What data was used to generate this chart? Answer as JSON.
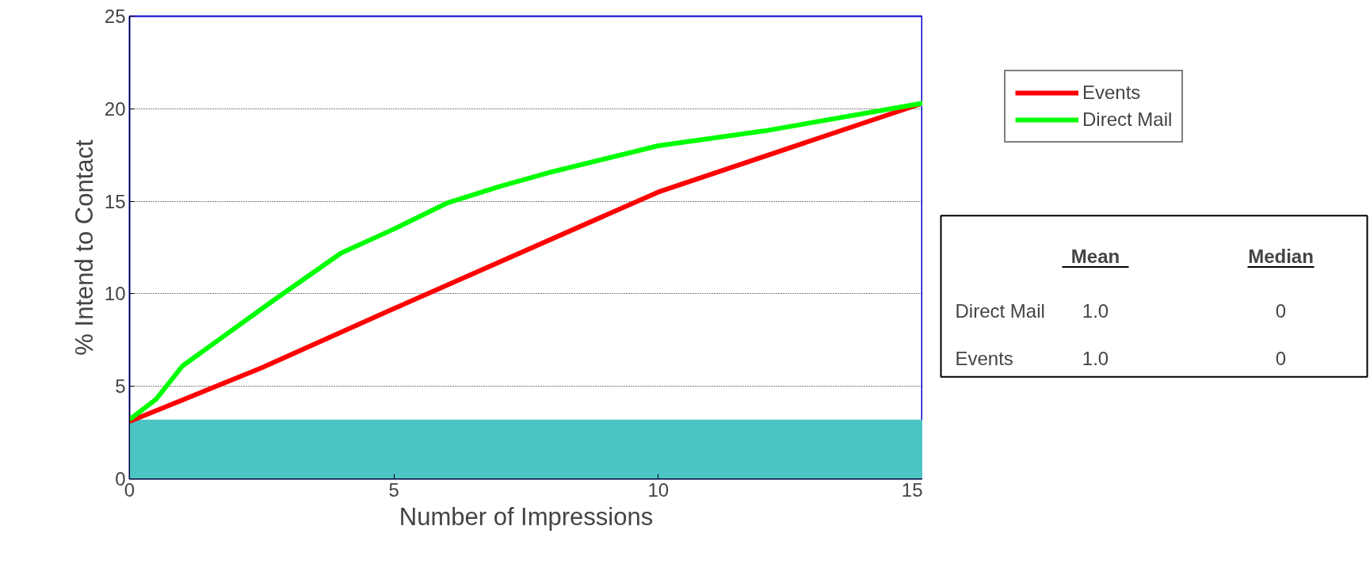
{
  "chart_data": {
    "type": "line",
    "xlabel": "Number of Impressions",
    "ylabel": "% Intend to Contact",
    "xlim": [
      0,
      15
    ],
    "ylim": [
      0,
      25
    ],
    "xticks": [
      0,
      5,
      10,
      15
    ],
    "yticks": [
      0,
      5,
      10,
      15,
      20,
      25
    ],
    "grid": "y",
    "legend": "right",
    "line_style": "solid",
    "marker": "none",
    "series": [
      {
        "name": "Events",
        "color": "#ff0000",
        "x": [
          0,
          2.5,
          5,
          10,
          15
        ],
        "values": [
          3.1,
          6.0,
          9.2,
          15.5,
          20.3
        ]
      },
      {
        "name": "Direct Mail",
        "color": "#00ff00",
        "x": [
          0,
          0.5,
          1,
          2.7,
          4,
          5,
          6,
          7,
          8,
          10,
          12,
          15
        ],
        "values": [
          3.2,
          4.3,
          6.1,
          9.6,
          12.2,
          13.5,
          14.9,
          15.8,
          16.6,
          18.0,
          18.8,
          20.3
        ]
      }
    ],
    "bands": [
      {
        "axis": "y",
        "from": 0,
        "to": 3.2,
        "color": "#4cc4c4"
      }
    ],
    "annotations": [
      "Mean",
      "Median",
      "Direct Mail",
      "1.0",
      "0",
      "Events",
      "1.0",
      "0"
    ]
  }
}
